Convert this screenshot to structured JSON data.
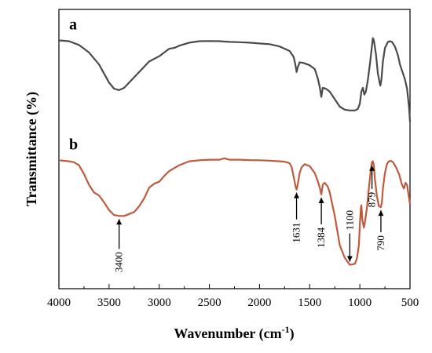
{
  "chart_data": {
    "type": "line",
    "title": "",
    "xlabel": "Wavenumber (cm",
    "xlabel_sup": "-1",
    "xlabel_close": ")",
    "ylabel": "Transmittance (%)",
    "xlim": [
      4000,
      500
    ],
    "x_reversed": true,
    "xticks": [
      4000,
      3500,
      3000,
      2500,
      2000,
      1500,
      1000,
      500
    ],
    "y_ticks_shown": false,
    "y_units": "relative transmittance (arbitrary, 0-100)",
    "ylim": [
      0,
      100
    ],
    "grid": false,
    "series": [
      {
        "name": "a",
        "color": "#4a4a4a",
        "points": [
          [
            4000,
            94.0
          ],
          [
            3900,
            93.5
          ],
          [
            3800,
            91.0
          ],
          [
            3700,
            86.0
          ],
          [
            3600,
            78.0
          ],
          [
            3550,
            72.0
          ],
          [
            3500,
            66.0
          ],
          [
            3450,
            62.0
          ],
          [
            3400,
            61.0
          ],
          [
            3350,
            62.5
          ],
          [
            3300,
            66.0
          ],
          [
            3200,
            73.0
          ],
          [
            3100,
            80.0
          ],
          [
            3000,
            83.5
          ],
          [
            2950,
            86.0
          ],
          [
            2900,
            88.5
          ],
          [
            2850,
            89.0
          ],
          [
            2800,
            90.5
          ],
          [
            2700,
            92.5
          ],
          [
            2600,
            93.5
          ],
          [
            2500,
            93.6
          ],
          [
            2400,
            93.5
          ],
          [
            2300,
            93.0
          ],
          [
            2200,
            92.8
          ],
          [
            2100,
            92.5
          ],
          [
            2000,
            92.0
          ],
          [
            1900,
            91.5
          ],
          [
            1800,
            90.0
          ],
          [
            1700,
            87.0
          ],
          [
            1660,
            83.0
          ],
          [
            1640,
            77.0
          ],
          [
            1631,
            73.0
          ],
          [
            1620,
            76.0
          ],
          [
            1600,
            79.5
          ],
          [
            1560,
            79.0
          ],
          [
            1500,
            77.5
          ],
          [
            1450,
            75.0
          ],
          [
            1420,
            69.0
          ],
          [
            1400,
            63.0
          ],
          [
            1384,
            56.5
          ],
          [
            1370,
            62.5
          ],
          [
            1340,
            62.0
          ],
          [
            1300,
            60.0
          ],
          [
            1250,
            55.0
          ],
          [
            1200,
            50.0
          ],
          [
            1150,
            48.0
          ],
          [
            1100,
            47.5
          ],
          [
            1050,
            47.5
          ],
          [
            1020,
            48.5
          ],
          [
            1000,
            52.0
          ],
          [
            985,
            60.0
          ],
          [
            970,
            62.5
          ],
          [
            955,
            58.0
          ],
          [
            940,
            60.0
          ],
          [
            920,
            68.0
          ],
          [
            900,
            78.0
          ],
          [
            880,
            90.0
          ],
          [
            870,
            95.5
          ],
          [
            860,
            94.0
          ],
          [
            840,
            85.0
          ],
          [
            820,
            72.0
          ],
          [
            800,
            65.0
          ],
          [
            795,
            64.0
          ],
          [
            785,
            68.0
          ],
          [
            770,
            80.0
          ],
          [
            750,
            89.0
          ],
          [
            720,
            93.0
          ],
          [
            700,
            93.5
          ],
          [
            680,
            93.0
          ],
          [
            650,
            90.0
          ],
          [
            620,
            84.0
          ],
          [
            600,
            78.0
          ],
          [
            570,
            72.0
          ],
          [
            550,
            68.0
          ],
          [
            530,
            62.0
          ],
          [
            510,
            50.0
          ],
          [
            500,
            40.0
          ]
        ]
      },
      {
        "name": "b",
        "color": "#c05a3e",
        "points": [
          [
            4000,
            58.5
          ],
          [
            3900,
            58.0
          ],
          [
            3850,
            57.5
          ],
          [
            3800,
            56.0
          ],
          [
            3750,
            51.5
          ],
          [
            3700,
            46.0
          ],
          [
            3650,
            42.0
          ],
          [
            3600,
            40.5
          ],
          [
            3550,
            37.0
          ],
          [
            3500,
            33.0
          ],
          [
            3450,
            30.5
          ],
          [
            3400,
            30.0
          ],
          [
            3350,
            30.0
          ],
          [
            3300,
            31.0
          ],
          [
            3250,
            32.0
          ],
          [
            3200,
            35.0
          ],
          [
            3150,
            39.0
          ],
          [
            3100,
            44.5
          ],
          [
            3050,
            46.5
          ],
          [
            3000,
            47.5
          ],
          [
            2950,
            50.5
          ],
          [
            2900,
            53.0
          ],
          [
            2850,
            54.5
          ],
          [
            2800,
            56.0
          ],
          [
            2750,
            57.0
          ],
          [
            2700,
            58.0
          ],
          [
            2600,
            58.5
          ],
          [
            2500,
            58.8
          ],
          [
            2400,
            58.8
          ],
          [
            2350,
            59.5
          ],
          [
            2300,
            58.8
          ],
          [
            2200,
            58.8
          ],
          [
            2100,
            58.6
          ],
          [
            2000,
            58.5
          ],
          [
            1900,
            58.3
          ],
          [
            1800,
            58.0
          ],
          [
            1750,
            57.8
          ],
          [
            1700,
            57.0
          ],
          [
            1680,
            55.0
          ],
          [
            1660,
            50.0
          ],
          [
            1640,
            45.0
          ],
          [
            1631,
            43.5
          ],
          [
            1620,
            46.0
          ],
          [
            1600,
            52.0
          ],
          [
            1580,
            55.0
          ],
          [
            1550,
            56.5
          ],
          [
            1500,
            55.5
          ],
          [
            1450,
            52.0
          ],
          [
            1420,
            48.0
          ],
          [
            1400,
            44.5
          ],
          [
            1384,
            41.0
          ],
          [
            1370,
            46.0
          ],
          [
            1350,
            47.0
          ],
          [
            1320,
            45.0
          ],
          [
            1300,
            42.0
          ],
          [
            1250,
            30.0
          ],
          [
            1200,
            15.0
          ],
          [
            1150,
            8.5
          ],
          [
            1100,
            5.0
          ],
          [
            1050,
            5.5
          ],
          [
            1030,
            8.0
          ],
          [
            1010,
            15.0
          ],
          [
            1000,
            25.0
          ],
          [
            990,
            34.0
          ],
          [
            985,
            35.5
          ],
          [
            975,
            28.0
          ],
          [
            960,
            24.0
          ],
          [
            950,
            26.5
          ],
          [
            930,
            34.0
          ],
          [
            910,
            44.0
          ],
          [
            890,
            54.0
          ],
          [
            879,
            57.5
          ],
          [
            870,
            58.0
          ],
          [
            860,
            56.0
          ],
          [
            850,
            49.0
          ],
          [
            830,
            40.0
          ],
          [
            810,
            35.0
          ],
          [
            790,
            34.5
          ],
          [
            780,
            37.0
          ],
          [
            770,
            44.0
          ],
          [
            750,
            52.0
          ],
          [
            730,
            56.5
          ],
          [
            710,
            58.0
          ],
          [
            690,
            58.2
          ],
          [
            670,
            57.5
          ],
          [
            640,
            55.0
          ],
          [
            610,
            51.5
          ],
          [
            580,
            46.0
          ],
          [
            560,
            44.0
          ],
          [
            545,
            47.0
          ],
          [
            530,
            46.0
          ],
          [
            515,
            41.0
          ],
          [
            500,
            36.0
          ]
        ]
      }
    ],
    "annotations": [
      {
        "label": "3400",
        "x": 3400
      },
      {
        "label": "1631",
        "x": 1631
      },
      {
        "label": "1384",
        "x": 1384
      },
      {
        "label": "1100",
        "x": 1100
      },
      {
        "label": "879",
        "x": 879
      },
      {
        "label": "790",
        "x": 790
      }
    ]
  }
}
